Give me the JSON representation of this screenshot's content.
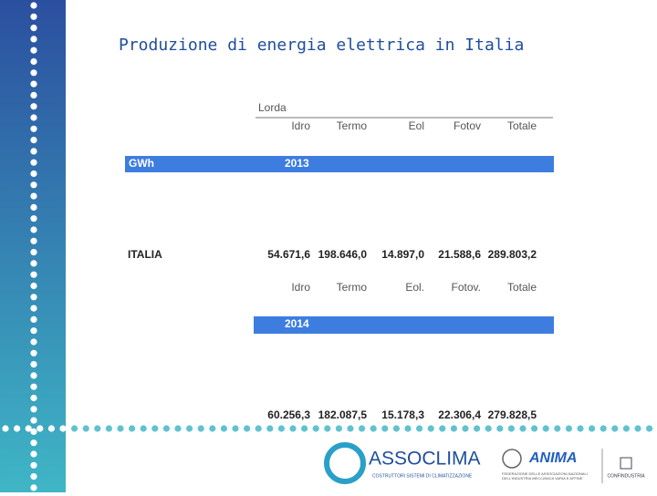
{
  "header": {
    "title": "Produzione di energia elettrica in Italia"
  },
  "table": {
    "group_label": "Lorda",
    "blocks": [
      {
        "columns": [
          "Idro",
          "Termo",
          "Eol",
          "Fotov",
          "Totale"
        ],
        "unit": "GWh",
        "year": "2013",
        "row_label": "ITALIA",
        "values": [
          "54.671,6",
          "198.646,0",
          "14.897,0",
          "21.588,6",
          "289.803,2"
        ]
      },
      {
        "columns": [
          "Idro",
          "Termo",
          "Eol.",
          "Fotov.",
          "Totale"
        ],
        "year": "2014",
        "values": [
          "60.256,3",
          "182.087,5",
          "15.178,3",
          "22.306,4",
          "279.828,5"
        ]
      }
    ]
  },
  "footer": {
    "logos": [
      {
        "name": "ASSOCLIMA",
        "tagline": "COSTRUTTORI SISTEMI DI CLIMATIZZAZIONE"
      },
      {
        "name": "ANIMA",
        "tagline": "FEDERAZIONE DELLE ASSOCIAZIONI NAZIONALI DELL'INDUSTRIA MECCANICA VARIA E AFFINE"
      },
      {
        "name": "CONFINDUSTRIA"
      }
    ]
  }
}
